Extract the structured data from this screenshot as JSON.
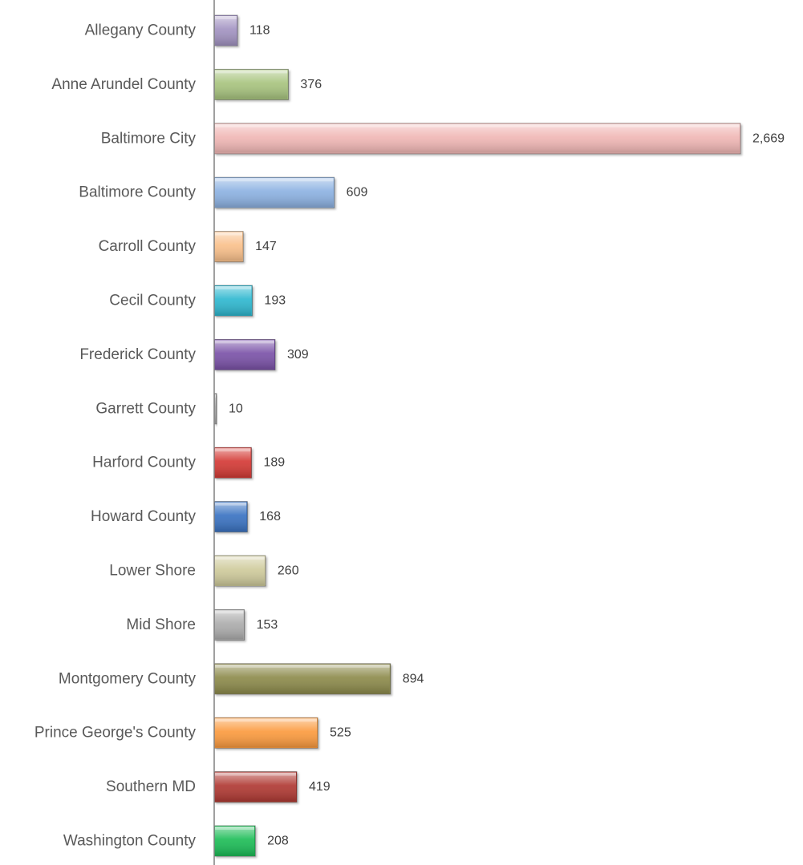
{
  "chart_data": {
    "type": "bar",
    "orientation": "horizontal",
    "title": "",
    "xlabel": "",
    "ylabel": "",
    "xlim": [
      0,
      2669
    ],
    "grid": false,
    "legend": "none",
    "style": "3d-beveled",
    "categories": [
      "Allegany County",
      "Anne Arundel County",
      "Baltimore City",
      "Baltimore County",
      "Carroll County",
      "Cecil County",
      "Frederick County",
      "Garrett County",
      "Harford County",
      "Howard County",
      "Lower Shore",
      "Mid Shore",
      "Montgomery County",
      "Prince George's County",
      "Southern MD",
      "Washington County"
    ],
    "values": [
      118,
      376,
      2669,
      609,
      147,
      193,
      309,
      10,
      189,
      168,
      260,
      153,
      894,
      525,
      419,
      208
    ],
    "value_labels": [
      "118",
      "376",
      "2,669",
      "609",
      "147",
      "193",
      "309",
      "10",
      "189",
      "168",
      "260",
      "153",
      "894",
      "525",
      "419",
      "208"
    ],
    "colors": [
      "#a394c2",
      "#a8c47f",
      "#f0b7b5",
      "#8db2e2",
      "#f9c08b",
      "#30b8d0",
      "#7b53a8",
      "#a6a6a6",
      "#d43b36",
      "#3b73c2",
      "#cfcb9c",
      "#adadad",
      "#8d8b4c",
      "#fb9b40",
      "#b03a34",
      "#1ebd58"
    ],
    "axis_color": "#808080"
  }
}
